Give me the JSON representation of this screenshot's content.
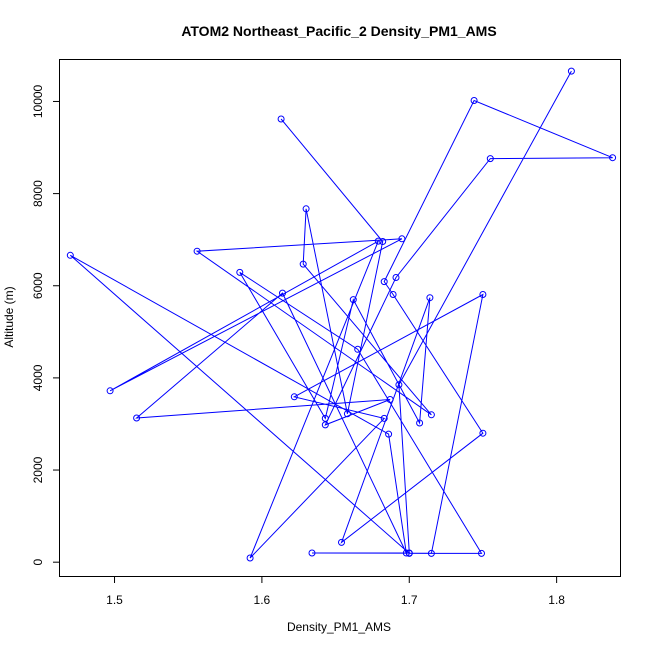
{
  "chart_data": {
    "type": "line",
    "title": "ATOM2 Northeast_Pacific_2 Density_PM1_AMS",
    "xlabel": "Density_PM1_AMS",
    "ylabel": "Altitude (m)",
    "xlim": [
      1.463,
      1.843
    ],
    "ylim": [
      -300,
      10900
    ],
    "xticks": [
      1.5,
      1.6,
      1.7,
      1.8
    ],
    "xtick_labels": [
      "1.5",
      "1.6",
      "1.7",
      "1.8"
    ],
    "yticks": [
      0,
      2000,
      4000,
      6000,
      8000,
      10000
    ],
    "ytick_labels": [
      "0",
      "2000",
      "4000",
      "6000",
      "8000",
      "10000"
    ],
    "grid": false,
    "legend": "none",
    "color": "#0000ff",
    "marker": "open-circle",
    "series": [
      {
        "points": [
          [
            1.613,
            9620
          ],
          [
            1.682,
            6960
          ],
          [
            1.658,
            3220
          ],
          [
            1.63,
            7670
          ],
          [
            1.628,
            6470
          ],
          [
            1.715,
            3200
          ],
          [
            1.556,
            6750
          ],
          [
            1.695,
            7020
          ],
          [
            1.497,
            3720
          ],
          [
            1.679,
            6970
          ],
          [
            1.592,
            90
          ],
          [
            1.683,
            3120
          ],
          [
            1.622,
            3590
          ],
          [
            1.75,
            5810
          ],
          [
            1.715,
            190
          ],
          [
            1.7,
            190
          ],
          [
            1.47,
            6660
          ],
          [
            1.686,
            2780
          ],
          [
            1.698,
            200
          ],
          [
            1.614,
            5840
          ],
          [
            1.515,
            3130
          ],
          [
            1.687,
            3530
          ],
          [
            1.643,
            2980
          ],
          [
            1.691,
            6180
          ],
          [
            1.755,
            8760
          ],
          [
            1.838,
            8780
          ],
          [
            1.744,
            10020
          ],
          [
            1.683,
            6090
          ],
          [
            1.689,
            5810
          ],
          [
            1.75,
            2800
          ],
          [
            1.654,
            430
          ],
          [
            1.714,
            5740
          ],
          [
            1.707,
            3020
          ],
          [
            1.662,
            5700
          ],
          [
            1.643,
            3120
          ],
          [
            1.585,
            6290
          ],
          [
            1.665,
            4620
          ],
          [
            1.749,
            190
          ],
          [
            1.634,
            200
          ],
          [
            1.7,
            200
          ],
          [
            1.693,
            3850
          ],
          [
            1.81,
            10660
          ]
        ]
      }
    ]
  }
}
